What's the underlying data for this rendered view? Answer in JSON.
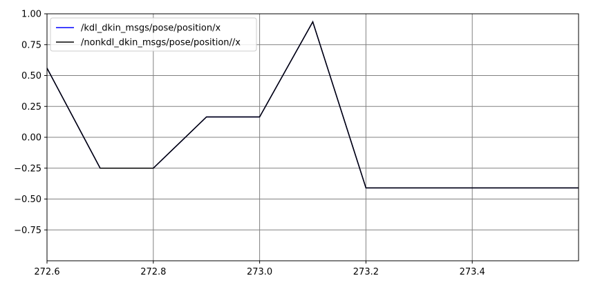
{
  "chart_data": {
    "type": "line",
    "title": "",
    "xlabel": "",
    "ylabel": "",
    "xlim": [
      272.6,
      273.6
    ],
    "ylim": [
      -1.0,
      1.0
    ],
    "grid": true,
    "legend_position": "top-left",
    "xticks": [
      272.6,
      272.8,
      273.0,
      273.2,
      273.4
    ],
    "xtick_labels": [
      "272.6",
      "272.8",
      "273.0",
      "273.2",
      "273.4"
    ],
    "yticks": [
      1.0,
      0.75,
      0.5,
      0.25,
      0.0,
      -0.25,
      -0.5,
      -0.75
    ],
    "ytick_labels": [
      "1.00",
      "0.75",
      "0.50",
      "0.25",
      "0.00",
      "−0.25",
      "−0.50",
      "−0.75"
    ],
    "series": [
      {
        "name": "/kdl_dkin_msgs/pose/position/x",
        "color": "#0000ff",
        "x": [
          272.6,
          272.7,
          272.8,
          272.9,
          273.0,
          273.1,
          273.2,
          273.3,
          273.4,
          273.5,
          273.6
        ],
        "y": [
          0.56,
          -0.25,
          -0.25,
          0.165,
          0.165,
          0.935,
          -0.41,
          -0.41,
          -0.41,
          -0.41,
          -0.41
        ]
      },
      {
        "name": "/nonkdl_dkin_msgs/pose/position//x",
        "color": "#000000",
        "x": [
          272.6,
          272.7,
          272.8,
          272.9,
          273.0,
          273.1,
          273.2,
          273.3,
          273.4,
          273.5,
          273.6
        ],
        "y": [
          0.56,
          -0.25,
          -0.25,
          0.165,
          0.165,
          0.935,
          -0.41,
          -0.41,
          -0.41,
          -0.41,
          -0.41
        ]
      }
    ]
  }
}
